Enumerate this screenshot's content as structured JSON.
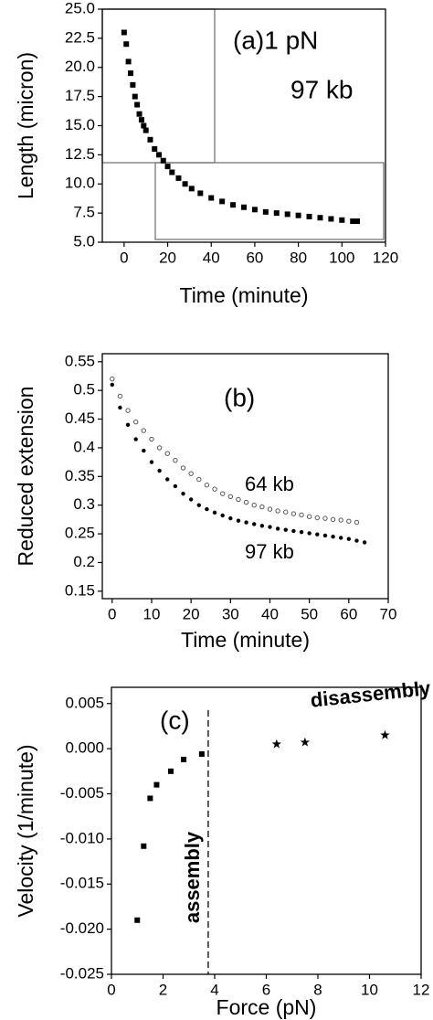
{
  "chart_data": [
    {
      "type": "scatter",
      "xlabel": "Time (minute)",
      "ylabel": "Length (micron)",
      "annotations": [
        "(a)1 pN",
        "97 kb"
      ],
      "xlim": [
        -10,
        120
      ],
      "xticks": [
        0,
        20,
        40,
        60,
        80,
        100,
        120
      ],
      "ylim": [
        5,
        25
      ],
      "yticks": [
        {
          "value": 5,
          "label": "5.0"
        },
        7.5,
        {
          "value": 10,
          "label": "10.0"
        },
        12.5,
        {
          "value": 15,
          "label": "15.0"
        },
        17.5,
        {
          "value": 20,
          "label": "20.0"
        },
        22.5,
        {
          "value": 25,
          "label": "25.0"
        }
      ],
      "color": "#000000",
      "marker": "square",
      "x": [
        0,
        1,
        2,
        3,
        4,
        5,
        6,
        7,
        8,
        9,
        10,
        12,
        14,
        16,
        18,
        20,
        22,
        25,
        28,
        31,
        35,
        40,
        45,
        50,
        55,
        60,
        65,
        70,
        75,
        80,
        85,
        90,
        95,
        100,
        105,
        107
      ],
      "values": [
        23,
        22,
        20.5,
        19.5,
        18.5,
        17.5,
        16.8,
        16,
        15.5,
        15,
        14.6,
        13.8,
        13,
        12.5,
        12,
        11.5,
        11,
        10.5,
        10,
        9.6,
        9.2,
        8.8,
        8.5,
        8.2,
        8,
        7.8,
        7.6,
        7.5,
        7.4,
        7.3,
        7.2,
        7.1,
        7,
        6.9,
        6.8,
        6.8
      ]
    },
    {
      "type": "scatter",
      "xlabel": "Time (minute)",
      "ylabel": "Reduced extension",
      "annotations": [
        "(b)"
      ],
      "xlim": [
        -2.5,
        70
      ],
      "xticks": [
        0,
        10,
        20,
        30,
        40,
        50,
        60,
        70
      ],
      "ylim": [
        0.137,
        0.564
      ],
      "yticks": [
        0.15,
        0.2,
        0.25,
        0.3,
        0.35,
        0.4,
        0.45,
        0.5,
        0.55
      ],
      "x": [
        0,
        2,
        4,
        6,
        8,
        10,
        12,
        14,
        16,
        18,
        20,
        22,
        24,
        26,
        28,
        30,
        32,
        34,
        36,
        38,
        40,
        42,
        44,
        46,
        48,
        50,
        52,
        54,
        56,
        58,
        60,
        62,
        64
      ],
      "series": [
        {
          "name": "64 kb",
          "color": "#555555",
          "marker": "circle",
          "values": [
            0.52,
            0.49,
            0.465,
            0.445,
            0.43,
            0.415,
            0.4,
            0.39,
            0.378,
            0.365,
            0.355,
            0.345,
            0.335,
            0.328,
            0.32,
            0.315,
            0.31,
            0.305,
            0.3,
            0.297,
            0.293,
            0.29,
            0.288,
            0.285,
            0.283,
            0.28,
            0.278,
            0.277,
            0.275,
            0.274,
            0.272,
            0.27,
            null
          ]
        },
        {
          "name": "97 kb",
          "color": "#000000",
          "marker": "dot",
          "values": [
            0.51,
            0.47,
            0.44,
            0.415,
            0.395,
            0.375,
            0.36,
            0.345,
            0.333,
            0.32,
            0.31,
            0.3,
            0.293,
            0.287,
            0.282,
            0.277,
            0.273,
            0.27,
            0.267,
            0.264,
            0.262,
            0.259,
            0.257,
            0.255,
            0.253,
            0.251,
            0.249,
            0.247,
            0.245,
            0.243,
            0.241,
            0.238,
            0.235
          ]
        }
      ]
    },
    {
      "type": "scatter",
      "xlabel": "Force (pN)",
      "ylabel": "Velocity (1/minute)",
      "annotations": [
        "(c)"
      ],
      "xlim": [
        0,
        12
      ],
      "xticks": [
        0,
        2,
        4,
        6,
        8,
        10,
        12
      ],
      "ylim": [
        -0.025,
        0.0068
      ],
      "yticks": [
        -0.025,
        {
          "value": -0.02,
          "label": "-0.020"
        },
        -0.015,
        {
          "value": -0.01,
          "label": "-0.010"
        },
        -0.005,
        {
          "value": 0,
          "label": "0.000"
        },
        0.005
      ],
      "vline": 3.75,
      "series": [
        {
          "name": "assembly",
          "color": "#000000",
          "marker": "square",
          "x": [
            1.0,
            1.25,
            1.5,
            1.75,
            2.3,
            2.8,
            3.5
          ],
          "values": [
            -0.019,
            -0.0108,
            -0.0055,
            -0.004,
            -0.0025,
            -0.0012,
            -0.0006
          ]
        },
        {
          "name": "disassembly",
          "color": "#000000",
          "marker": "star",
          "x": [
            6.4,
            7.5,
            10.6
          ],
          "values": [
            0.0005,
            0.0007,
            0.0015
          ]
        }
      ]
    }
  ]
}
